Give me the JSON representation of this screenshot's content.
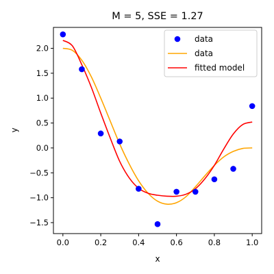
{
  "chart_data": {
    "type": "scatter",
    "title": "M = 5, SSE = 1.27",
    "xlabel": "x",
    "ylabel": "y",
    "xlim": [
      -0.05,
      1.05
    ],
    "ylim": [
      -1.72,
      2.42
    ],
    "xticks": [
      0.0,
      0.2,
      0.4,
      0.6,
      0.8,
      1.0
    ],
    "xtick_labels": [
      "0.0",
      "0.2",
      "0.4",
      "0.6",
      "0.8",
      "1.0"
    ],
    "yticks": [
      -1.5,
      -1.0,
      -0.5,
      0.0,
      0.5,
      1.0,
      1.5,
      2.0
    ],
    "ytick_labels": [
      "−1.5",
      "−1.0",
      "−0.5",
      "0.0",
      "0.5",
      "1.0",
      "1.5",
      "2.0"
    ],
    "grid": false,
    "legend_position": "top-right",
    "series": [
      {
        "name": "data",
        "kind": "points",
        "color": "#0000ff",
        "x": [
          0.0,
          0.1,
          0.2,
          0.3,
          0.4,
          0.5,
          0.6,
          0.7,
          0.8,
          0.9,
          1.0
        ],
        "y": [
          2.28,
          1.58,
          0.29,
          0.13,
          -0.82,
          -1.53,
          -0.88,
          -0.88,
          -0.63,
          -0.42,
          0.84
        ]
      },
      {
        "name": "data",
        "kind": "line",
        "color": "#ffa500",
        "x": [
          0.0,
          0.05,
          0.1,
          0.15,
          0.2,
          0.25,
          0.3,
          0.35,
          0.4,
          0.45,
          0.5,
          0.55,
          0.6,
          0.65,
          0.7,
          0.75,
          0.8,
          0.85,
          0.9,
          0.95,
          1.0
        ],
        "y": [
          2.0,
          1.96,
          1.76,
          1.43,
          1.0,
          0.54,
          0.08,
          -0.32,
          -0.66,
          -0.91,
          -1.07,
          -1.13,
          -1.1,
          -0.98,
          -0.78,
          -0.56,
          -0.35,
          -0.18,
          -0.07,
          -0.01,
          0.0
        ]
      },
      {
        "name": "fitted model",
        "kind": "line",
        "color": "#ff0000",
        "x": [
          0.0,
          0.05,
          0.1,
          0.15,
          0.2,
          0.25,
          0.3,
          0.35,
          0.4,
          0.45,
          0.5,
          0.55,
          0.6,
          0.65,
          0.7,
          0.75,
          0.8,
          0.85,
          0.9,
          0.95,
          1.0
        ],
        "y": [
          2.16,
          2.05,
          1.67,
          1.22,
          0.7,
          0.2,
          -0.27,
          -0.6,
          -0.81,
          -0.91,
          -0.95,
          -0.97,
          -0.97,
          -0.93,
          -0.82,
          -0.62,
          -0.35,
          -0.02,
          0.28,
          0.47,
          0.52
        ]
      }
    ],
    "legend": [
      {
        "label": "data",
        "marker": "point",
        "color": "#0000ff"
      },
      {
        "label": "data",
        "marker": "line",
        "color": "#ffa500"
      },
      {
        "label": "fitted model",
        "marker": "line",
        "color": "#ff0000"
      }
    ]
  }
}
